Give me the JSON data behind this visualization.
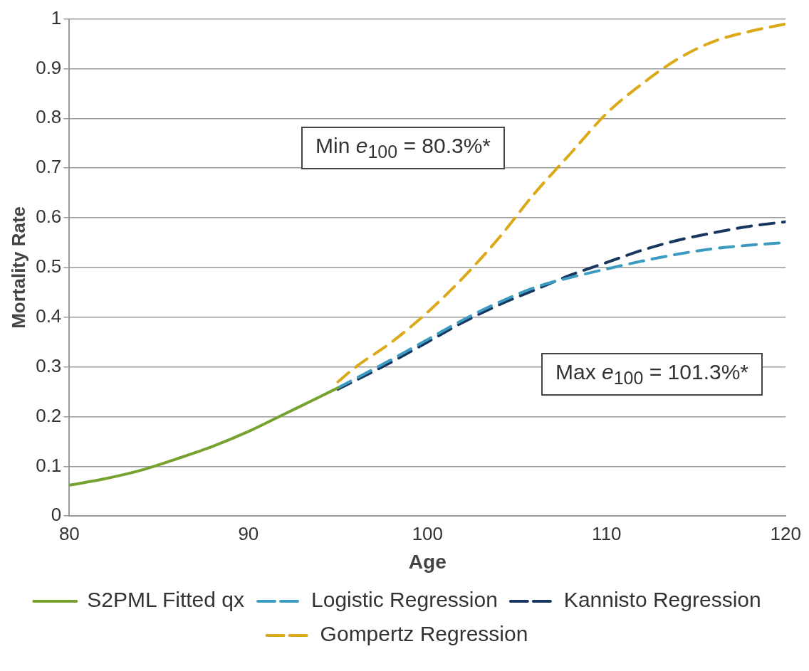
{
  "chart_data": {
    "type": "line",
    "xlabel": "Age",
    "ylabel": "Mortality Rate",
    "xlim": [
      80,
      120
    ],
    "xticks": [
      80,
      90,
      100,
      110,
      120
    ],
    "ylim": [
      0,
      1
    ],
    "yticks": [
      0,
      0.1,
      0.2,
      0.3,
      0.4,
      0.5,
      0.6,
      0.7,
      0.8,
      0.9,
      1
    ],
    "grid": "y",
    "legend": "bottom",
    "marker": "none",
    "annotations": [
      "Min e$_{100}$ = 80.3%*",
      "Max e$_{100}$ = 101.3%*"
    ],
    "series": [
      {
        "name": "S2PML Fitted qx",
        "color": "#77a22f",
        "line_style": "solid",
        "x": [
          80,
          82,
          84,
          86,
          88,
          90,
          92,
          94,
          95
        ],
        "values": [
          0.062,
          0.075,
          0.092,
          0.115,
          0.14,
          0.17,
          0.205,
          0.24,
          0.258
        ]
      },
      {
        "name": "Logistic Regression",
        "color": "#3d9bc1",
        "line_style": "dashed",
        "x": [
          95,
          98,
          100,
          102,
          104,
          106,
          108,
          110,
          112,
          114,
          116,
          118,
          120
        ],
        "values": [
          0.258,
          0.315,
          0.355,
          0.395,
          0.43,
          0.46,
          0.48,
          0.497,
          0.513,
          0.527,
          0.538,
          0.545,
          0.55
        ]
      },
      {
        "name": "Kannisto Regression",
        "color": "#17375e",
        "line_style": "dashed",
        "x": [
          95,
          98,
          100,
          102,
          104,
          106,
          108,
          110,
          112,
          114,
          116,
          118,
          120
        ],
        "values": [
          0.255,
          0.31,
          0.35,
          0.39,
          0.425,
          0.455,
          0.485,
          0.51,
          0.535,
          0.555,
          0.57,
          0.583,
          0.592
        ]
      },
      {
        "name": "Gompertz Regression",
        "color": "#dca919",
        "line_style": "dashed",
        "x": [
          95,
          96,
          98,
          100,
          102,
          104,
          106,
          108,
          110,
          112,
          114,
          116,
          118,
          120
        ],
        "values": [
          0.27,
          0.3,
          0.35,
          0.41,
          0.48,
          0.56,
          0.65,
          0.73,
          0.81,
          0.87,
          0.92,
          0.955,
          0.975,
          0.99
        ]
      }
    ]
  }
}
